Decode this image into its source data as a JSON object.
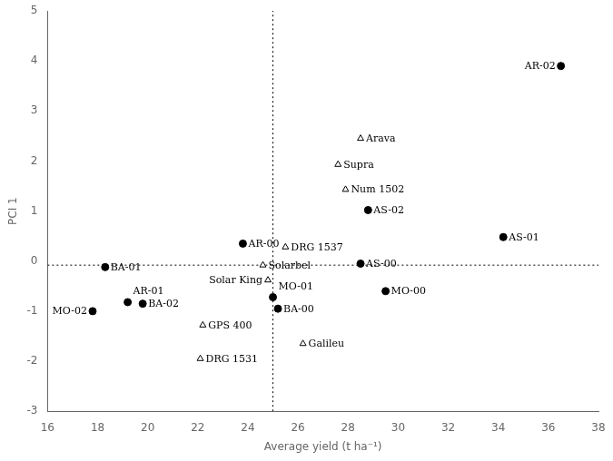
{
  "chart_data": {
    "type": "scatter",
    "xlabel": "Average yield (t ha⁻¹)",
    "ylabel": "PCI 1",
    "xlim": [
      16,
      38
    ],
    "ylim": [
      -3,
      5
    ],
    "xticks": [
      16,
      18,
      20,
      22,
      24,
      26,
      28,
      30,
      32,
      34,
      36,
      38
    ],
    "yticks": [
      -3,
      -2,
      -1,
      0,
      1,
      2,
      3,
      4,
      5
    ],
    "grid": false,
    "vline_x": 25.0,
    "hline_y": -0.08,
    "series": [
      {
        "marker": "circle",
        "color": "black",
        "labels": [
          "AR-02",
          "AR-01",
          "AR-00",
          "BA-01",
          "BA-02",
          "BA-00",
          "MO-02",
          "MO-01",
          "MO-00",
          "AS-02",
          "AS-01",
          "AS-00"
        ],
        "x": [
          36.5,
          19.2,
          23.8,
          18.3,
          19.8,
          25.2,
          17.8,
          25.0,
          29.5,
          28.8,
          34.2,
          28.5
        ],
        "values": [
          3.9,
          -0.82,
          0.35,
          -0.12,
          -0.85,
          -0.95,
          -1.0,
          -0.72,
          -0.6,
          1.02,
          0.48,
          -0.05
        ]
      },
      {
        "marker": "triangle_open",
        "color": "black",
        "labels": [
          "Arava",
          "Supra",
          "Num 1502",
          "DRG 1537",
          "Solarbel",
          "Solar King",
          "GPS 400",
          "DRG 1531",
          "Galileu"
        ],
        "x": [
          28.5,
          27.6,
          27.9,
          25.5,
          24.6,
          24.8,
          22.2,
          22.1,
          26.2
        ],
        "values": [
          2.45,
          1.93,
          1.43,
          0.28,
          -0.08,
          -0.38,
          -1.28,
          -1.95,
          -1.65
        ]
      }
    ]
  }
}
